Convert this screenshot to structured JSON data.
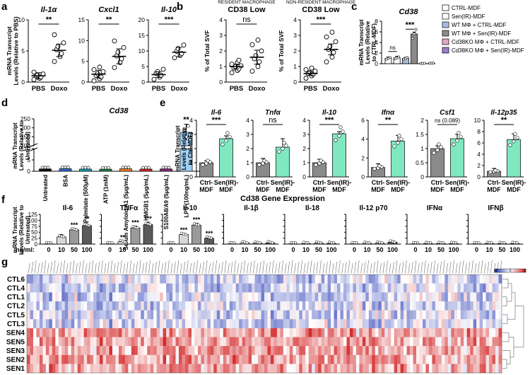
{
  "figure": {
    "panel_labels": [
      "a",
      "b",
      "c",
      "d",
      "e",
      "f",
      "g"
    ],
    "section_title": "Cd38 Gene Expression"
  },
  "chart_data": [
    {
      "id": "a1",
      "type": "dot",
      "title": "Il-1α",
      "title_italic": true,
      "ylabel": "mRNA Transcript Levels (Relative to PBS)",
      "ylim": [
        0,
        10
      ],
      "yticks": [
        0,
        5,
        10
      ],
      "categories": [
        "PBS",
        "Doxo"
      ],
      "means": [
        1.0,
        5.1
      ],
      "errors": [
        0.5,
        1.0
      ],
      "points": [
        [
          0.4,
          0.6,
          0.8,
          1.0,
          1.1,
          1.3,
          1.6
        ],
        [
          3.3,
          4.1,
          4.6,
          5.2,
          5.7,
          6.3,
          7.6
        ]
      ],
      "significance": [
        {
          "pair": [
            0,
            1
          ],
          "label": "**"
        }
      ]
    },
    {
      "id": "a2",
      "type": "dot",
      "title": "Cxcl1",
      "title_italic": true,
      "ylim": [
        0,
        15
      ],
      "yticks": [
        0,
        5,
        10,
        15
      ],
      "categories": [
        "PBS",
        "Doxo"
      ],
      "means": [
        1.9,
        6.2
      ],
      "errors": [
        0.9,
        1.8
      ],
      "points": [
        [
          0.3,
          0.8,
          1.2,
          1.6,
          2.0,
          2.5,
          3.0,
          3.6
        ],
        [
          3.5,
          4.7,
          5.6,
          6.3,
          7.2,
          8.3,
          9.9
        ]
      ],
      "significance": [
        {
          "pair": [
            0,
            1
          ],
          "label": "**"
        }
      ]
    },
    {
      "id": "a3",
      "type": "dot",
      "title": "Il-10",
      "title_italic": true,
      "ylim": [
        0,
        20
      ],
      "yticks": [
        0,
        5,
        10,
        15,
        20
      ],
      "categories": [
        "PBS",
        "Doxo"
      ],
      "means": [
        2.4,
        9.6
      ],
      "errors": [
        0.9,
        1.5
      ],
      "points": [
        [
          0.9,
          1.6,
          2.2,
          2.8,
          3.4,
          4.1
        ],
        [
          7.8,
          8.6,
          9.2,
          9.9,
          10.8,
          11.9
        ]
      ],
      "significance": [
        {
          "pair": [
            0,
            1
          ],
          "label": "***"
        }
      ]
    },
    {
      "id": "b1",
      "type": "dot",
      "supertitle": "RESIDENT MACROPHAGE",
      "title": "CD38 Low",
      "ylabel": "% of Total SVF",
      "ylim": [
        0,
        4
      ],
      "yticks": [
        0,
        1,
        2,
        3,
        4
      ],
      "categories": [
        "PBS",
        "Doxo"
      ],
      "means": [
        1.0,
        1.6
      ],
      "errors": [
        0.15,
        0.45
      ],
      "points": [
        [
          0.6,
          0.75,
          0.85,
          0.9,
          1.0,
          1.05,
          1.15,
          1.25,
          1.4
        ],
        [
          0.7,
          1.0,
          1.3,
          1.5,
          1.7,
          2.0,
          2.4,
          2.7
        ]
      ],
      "significance": [
        {
          "pair": [
            0,
            1
          ],
          "label": "ns"
        }
      ]
    },
    {
      "id": "b2",
      "type": "dot",
      "supertitle": "NON-RESIDENT MACROPHAGE",
      "title": "CD38 Low",
      "ylabel": "% of Total SVF",
      "ylim": [
        0,
        4
      ],
      "yticks": [
        0,
        1,
        2,
        3,
        4
      ],
      "categories": [
        "PBS",
        "Doxo"
      ],
      "means": [
        0.55,
        2.1
      ],
      "errors": [
        0.12,
        0.35
      ],
      "points": [
        [
          0.25,
          0.4,
          0.5,
          0.55,
          0.62,
          0.7,
          0.8,
          0.9
        ],
        [
          1.3,
          1.6,
          1.9,
          2.1,
          2.3,
          2.6,
          2.9,
          3.2
        ]
      ],
      "significance": [
        {
          "pair": [
            0,
            1
          ],
          "label": "***"
        }
      ]
    },
    {
      "id": "c",
      "type": "bar",
      "title": "Cd38",
      "title_italic": true,
      "ylabel": "mRNA Transcript Levels (Relative to CTRL-MDF)",
      "ylim": [
        0,
        8
      ],
      "yticks": [
        0,
        2,
        4,
        6,
        8
      ],
      "series": [
        {
          "name": "CTRL-MDF",
          "value": 1.0,
          "error": 0.25,
          "color": "#ffffff"
        },
        {
          "name": "Sen(IR)-MDF",
          "value": 1.1,
          "error": 0.3,
          "color": "#ffffff"
        },
        {
          "name": "WT MΦ + CTRL-MDF",
          "value": 1.0,
          "error": 0.2,
          "color": "#a6bde0"
        },
        {
          "name": "WT MΦ + Sen(IR)-MDF",
          "value": 5.6,
          "error": 0.35,
          "color": "#8a8a8a"
        },
        {
          "name": "Cd38KO MΦ + CTRL-MDF",
          "value": 0.06,
          "error": 0.03,
          "color": "#e2a6c8"
        },
        {
          "name": "Cd38KO MΦ + Sen(IR)-MDF",
          "value": 0.08,
          "error": 0.04,
          "color": "#9a7fc8"
        }
      ],
      "significance": [
        {
          "pair": [
            0,
            1
          ],
          "label": "ns"
        },
        {
          "pair": [
            2,
            3
          ],
          "label": "***"
        }
      ]
    },
    {
      "id": "d",
      "type": "bar",
      "title": "Cd38",
      "title_italic": true,
      "ylabel": "mRNA Transcript Levels (Relative to Untreated)",
      "axis_break": true,
      "ylim": [
        0,
        250
      ],
      "yticks": [
        0,
        5,
        10,
        100,
        150,
        200,
        250
      ],
      "categories": [
        "Untreated",
        "BSA",
        "BSA Palmitate (500μM)",
        "ATP (1mM)",
        "Serum Amyloid A1 (5μg/mL)",
        "HMGB1 (5μg/mL)",
        "S100A8/A9 (5μg/mL)",
        "LPS (100ng/mL)"
      ],
      "values": [
        1.0,
        1.1,
        0.95,
        0.9,
        1.05,
        0.95,
        1.0,
        175
      ],
      "errors": [
        0.2,
        0.2,
        0.2,
        0.2,
        0.2,
        0.2,
        0.2,
        45
      ],
      "colors": [
        "#111111",
        "#2f6bcf",
        "#19a8b8",
        "#1f8a4c",
        "#f47c20",
        "#d62a2a",
        "#8a2a7a",
        "#9ed0f5"
      ],
      "significance": [
        {
          "index": 7,
          "label": "**"
        }
      ]
    },
    {
      "id": "e1",
      "type": "bar",
      "title": "Il-6",
      "title_italic": true,
      "ylabel": "mRNA Transcript Levels (Relative to Ctrl-MDF)",
      "ylim": [
        0,
        4
      ],
      "yticks": [
        0,
        1,
        2,
        3,
        4
      ],
      "categories": [
        "Ctrl-MDF",
        "Sen(IR)-MDF"
      ],
      "values": [
        1.0,
        2.7
      ],
      "errors": [
        0.15,
        0.2
      ],
      "colors": [
        "#8a8a8a",
        "#7fe8c0"
      ],
      "significance": [
        {
          "pair": [
            0,
            1
          ],
          "label": "***"
        }
      ]
    },
    {
      "id": "e2",
      "type": "bar",
      "title": "Tnfα",
      "title_italic": true,
      "ylim": [
        0,
        4
      ],
      "yticks": [
        0,
        1,
        2,
        3,
        4
      ],
      "categories": [
        "Ctrl-MDF",
        "Sen(IR)-MDF"
      ],
      "values": [
        1.0,
        2.1
      ],
      "errors": [
        0.3,
        0.6
      ],
      "colors": [
        "#8a8a8a",
        "#7fe8c0"
      ],
      "significance": [
        {
          "pair": [
            0,
            1
          ],
          "label": "ns"
        }
      ]
    },
    {
      "id": "e3",
      "type": "bar",
      "title": "Il-10",
      "title_italic": true,
      "ylim": [
        0,
        4
      ],
      "yticks": [
        0,
        1,
        2,
        3,
        4
      ],
      "categories": [
        "Ctrl-MDF",
        "Sen(IR)-MDF"
      ],
      "values": [
        1.0,
        3.05
      ],
      "errors": [
        0.25,
        0.15
      ],
      "colors": [
        "#8a8a8a",
        "#7fe8c0"
      ],
      "significance": [
        {
          "pair": [
            0,
            1
          ],
          "label": "***"
        }
      ]
    },
    {
      "id": "e4",
      "type": "bar",
      "title": "Ifnα",
      "title_italic": true,
      "ylim": [
        0,
        6
      ],
      "yticks": [
        0,
        2,
        4,
        6
      ],
      "categories": [
        "Ctrl-MDF",
        "Sen(IR)-MDF"
      ],
      "values": [
        1.0,
        3.8
      ],
      "errors": [
        0.4,
        0.6
      ],
      "colors": [
        "#8a8a8a",
        "#7fe8c0"
      ],
      "significance": [
        {
          "pair": [
            0,
            1
          ],
          "label": "**"
        }
      ]
    },
    {
      "id": "e5",
      "type": "bar",
      "title": "Csf1",
      "title_italic": true,
      "ylim": [
        0,
        2.0
      ],
      "yticks": [
        0,
        0.5,
        1.0,
        1.5,
        2.0
      ],
      "categories": [
        "Ctrl-MDF",
        "Sen(IR)-MDF"
      ],
      "values": [
        1.0,
        1.35
      ],
      "errors": [
        0.1,
        0.15
      ],
      "colors": [
        "#8a8a8a",
        "#7fe8c0"
      ],
      "significance": [
        {
          "pair": [
            0,
            1
          ],
          "label": "ns (0.089)"
        }
      ]
    },
    {
      "id": "e6",
      "type": "bar",
      "title": "Il-12p35",
      "title_italic": true,
      "ylim": [
        0,
        10
      ],
      "yticks": [
        0,
        2,
        4,
        6,
        8,
        10
      ],
      "categories": [
        "Ctrl-MDF",
        "Sen(IR)-MDF"
      ],
      "values": [
        1.0,
        6.6
      ],
      "errors": [
        0.5,
        1.0
      ],
      "colors": [
        "#8a8a8a",
        "#7fe8c0"
      ],
      "significance": [
        {
          "pair": [
            0,
            1
          ],
          "label": "**"
        }
      ]
    },
    {
      "id": "f",
      "type": "bar",
      "ylabel": "mRNA Transcript Levels (Relative to Untreated)",
      "x_unit_label": "ng/ml:",
      "ylim": [
        0,
        125
      ],
      "yticks": [
        0,
        25,
        50,
        75,
        100,
        125
      ],
      "doses": [
        "0",
        "10",
        "50",
        "100"
      ],
      "dose_colors": [
        "#ffffff",
        "#d8d8d8",
        "#9a9a9a",
        "#5a5a5a"
      ],
      "groups": [
        {
          "name": "Il-6",
          "values": [
            1,
            30,
            60,
            78
          ],
          "errors": [
            0.5,
            10,
            6,
            15
          ],
          "sig": [
            "",
            "",
            "***",
            "**"
          ]
        },
        {
          "name": "TNFα",
          "values": [
            1,
            10,
            68,
            82
          ],
          "errors": [
            0.5,
            3,
            8,
            10
          ],
          "sig": [
            "",
            "**",
            "***",
            "***"
          ]
        },
        {
          "name": "Il-10",
          "values": [
            1,
            40,
            80,
            25
          ],
          "errors": [
            0.5,
            5,
            8,
            5
          ],
          "sig": [
            "",
            "***",
            "***",
            "***"
          ]
        },
        {
          "name": "Il-1β",
          "values": [
            1,
            5,
            4,
            5
          ],
          "errors": [
            0.5,
            1.5,
            1.5,
            1.5
          ],
          "sig": [
            "",
            "",
            "",
            ""
          ]
        },
        {
          "name": "Il-18",
          "values": [
            1,
            2,
            4,
            3
          ],
          "errors": [
            0.5,
            1,
            1.5,
            1
          ],
          "sig": [
            "",
            "",
            "",
            ""
          ]
        },
        {
          "name": "Il-12 p70",
          "values": [
            1,
            3,
            4,
            8
          ],
          "errors": [
            0.5,
            1,
            1.5,
            5
          ],
          "sig": [
            "",
            "",
            "",
            ""
          ]
        },
        {
          "name": "IFNα",
          "values": [
            1,
            2,
            2,
            2
          ],
          "errors": [
            0.5,
            1,
            1,
            1
          ],
          "sig": [
            "",
            "",
            "",
            ""
          ]
        },
        {
          "name": "IFNβ",
          "values": [
            1,
            2,
            2,
            2
          ],
          "errors": [
            0.5,
            1,
            1,
            1
          ],
          "sig": [
            "",
            "",
            "",
            ""
          ]
        }
      ]
    },
    {
      "id": "g",
      "type": "heatmap",
      "rows": [
        "CTL6",
        "CTL4",
        "CTL1",
        "CTL2",
        "CTL5",
        "CTL3",
        "SEN4",
        "SEN5",
        "SEN3",
        "SEN2",
        "SEN1"
      ],
      "n_columns": 150,
      "column_labels_legible": false,
      "colorbar": {
        "ticks": [
          -2,
          0,
          2
        ],
        "colors": [
          "#2b3eb6",
          "#ffffff",
          "#d42a2a"
        ]
      },
      "row_dendrogram": true
    }
  ]
}
